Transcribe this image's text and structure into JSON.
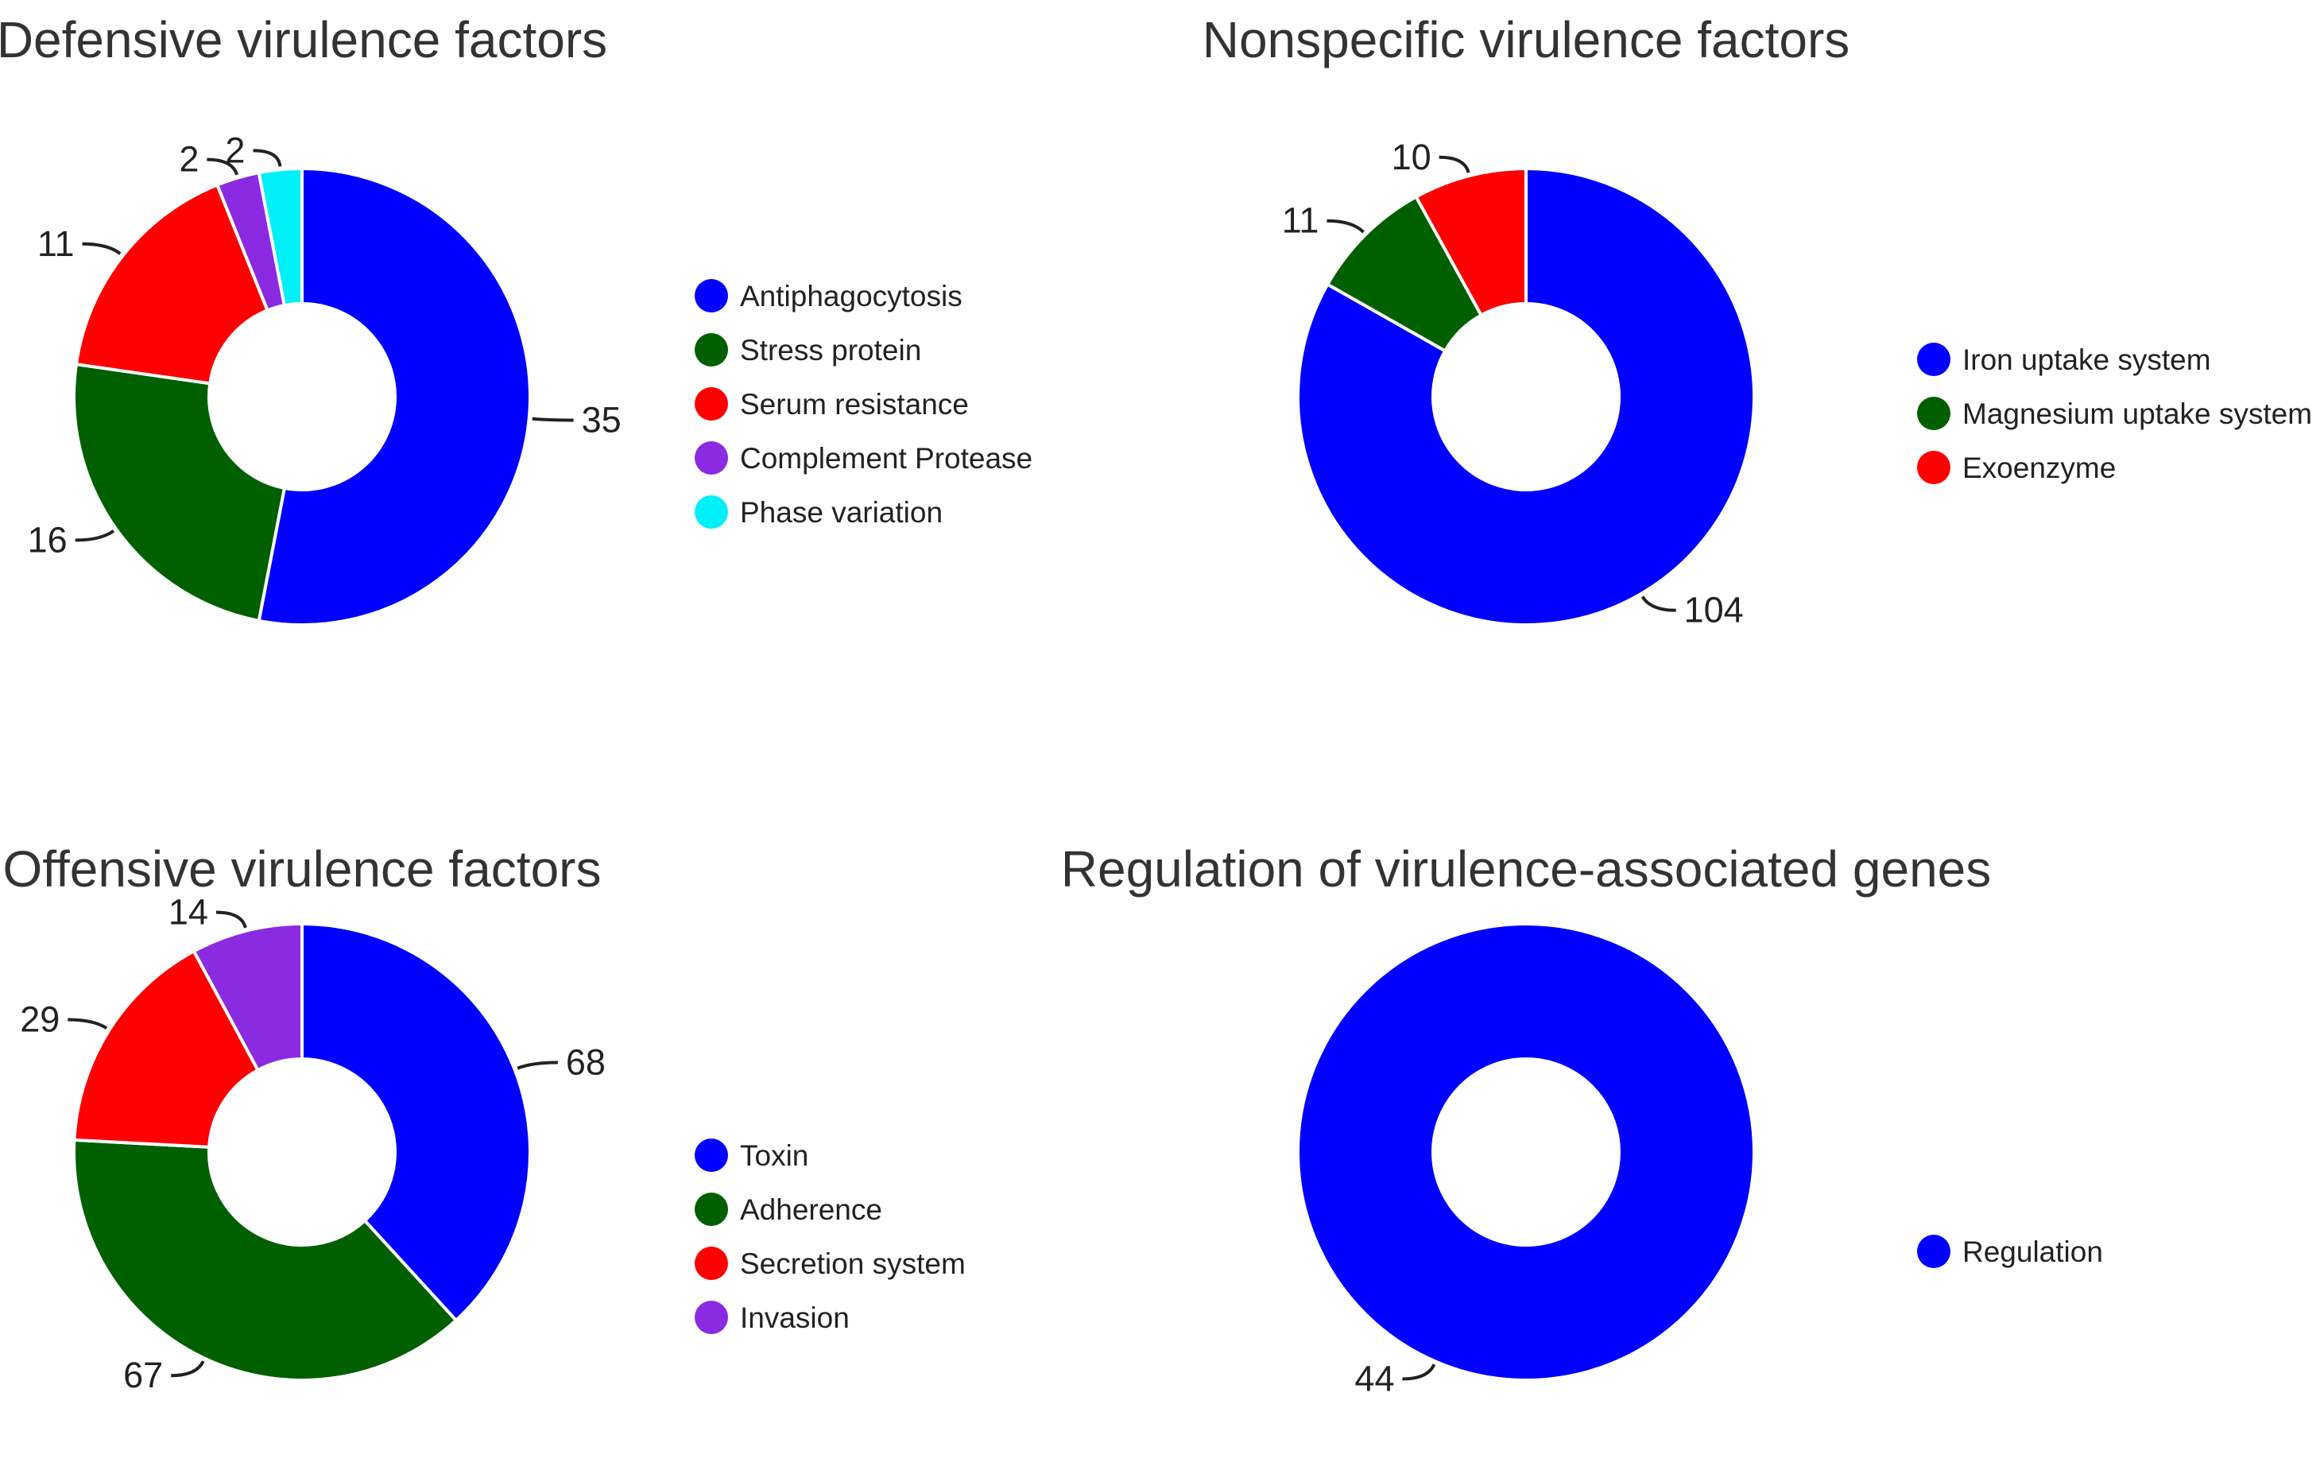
{
  "chart_data": [
    {
      "type": "pie",
      "donut": true,
      "title": "Defensive virulence factors",
      "legend_position": "right",
      "categories": [
        "Antiphagocytosis",
        "Stress protein",
        "Serum resistance",
        "Complement Protease",
        "Phase variation"
      ],
      "values": [
        35,
        16,
        11,
        2,
        2
      ],
      "colors": [
        "#0000ff",
        "#006000",
        "#ff0000",
        "#8a2be2",
        "#00f0f8"
      ]
    },
    {
      "type": "pie",
      "donut": true,
      "title": "Nonspecific virulence factors",
      "legend_position": "right",
      "categories": [
        "Iron uptake system",
        "Magnesium uptake system",
        "Exoenzyme"
      ],
      "values": [
        104,
        11,
        10
      ],
      "colors": [
        "#0000ff",
        "#006000",
        "#ff0000"
      ]
    },
    {
      "type": "pie",
      "donut": true,
      "title": "Offensive virulence factors",
      "legend_position": "right",
      "categories": [
        "Toxin",
        "Adherence",
        "Secretion system",
        "Invasion"
      ],
      "values": [
        68,
        67,
        29,
        14
      ],
      "colors": [
        "#0000ff",
        "#006000",
        "#ff0000",
        "#8a2be2"
      ]
    },
    {
      "type": "pie",
      "donut": true,
      "title": "Regulation of virulence-associated genes",
      "legend_position": "right",
      "categories": [
        "Regulation"
      ],
      "values": [
        44
      ],
      "colors": [
        "#0000ff"
      ]
    }
  ]
}
